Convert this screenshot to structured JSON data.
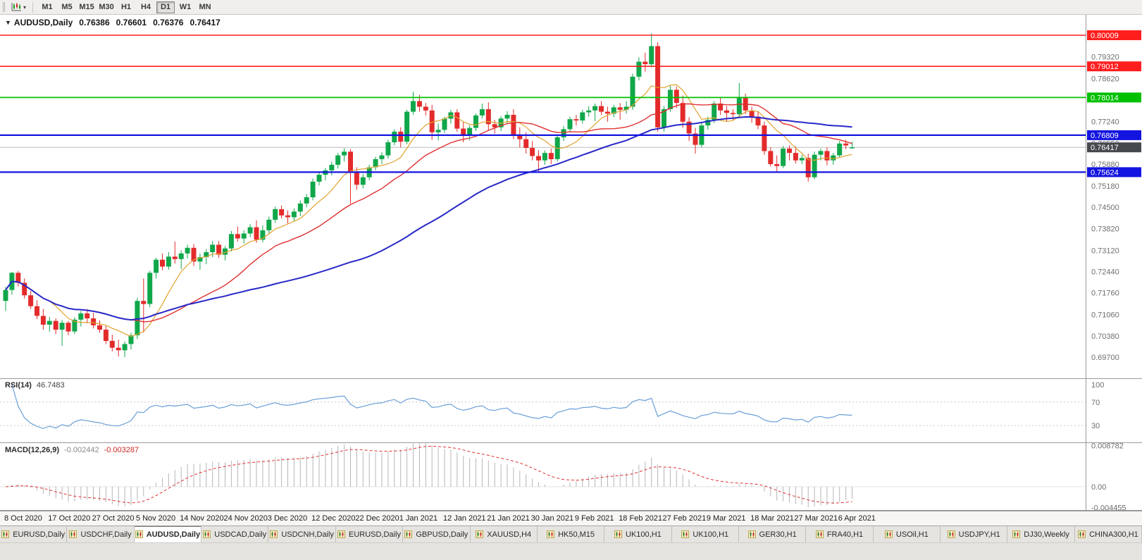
{
  "toolbar": {
    "chart_icon": {
      "name": "candlestick-chart-icon"
    },
    "dropdown_glyph": "▾",
    "timeframes": [
      "M1",
      "M5",
      "M15",
      "M30",
      "H1",
      "H4",
      "D1",
      "W1",
      "MN"
    ],
    "active_timeframe": "D1"
  },
  "chart": {
    "collapse_glyph": "▼",
    "symbol_label": "AUDUSD,Daily",
    "ohlc": {
      "open": "0.76386",
      "high": "0.76601",
      "low": "0.76376",
      "close": "0.76417"
    }
  },
  "chart_data": {
    "type": "candlestick",
    "title": "AUDUSD,Daily",
    "x_labels": [
      "8 Oct 2020",
      "17 Oct 2020",
      "27 Oct 2020",
      "5 Nov 2020",
      "14 Nov 2020",
      "24 Nov 2020",
      "3 Dec 2020",
      "12 Dec 2020",
      "22 Dec 2020",
      "1 Jan 2021",
      "12 Jan 2021",
      "21 Jan 2021",
      "30 Jan 2021",
      "9 Feb 2021",
      "18 Feb 2021",
      "27 Feb 2021",
      "9 Mar 2021",
      "18 Mar 2021",
      "27 Mar 2021",
      "6 Apr 2021"
    ],
    "ylim": [
      0.6901,
      0.8064
    ],
    "y_axis_ticks": [
      "0.79320",
      "0.78620",
      "0.77940",
      "0.77240",
      "0.76550",
      "0.75880",
      "0.75180",
      "0.74500",
      "0.73820",
      "0.73120",
      "0.72440",
      "0.71760",
      "0.71060",
      "0.70380",
      "0.69700"
    ],
    "colors": {
      "up": "#10a74a",
      "down": "#e32b2b"
    },
    "candles": [
      [
        0.715,
        0.7195,
        0.7118,
        0.7185
      ],
      [
        0.7185,
        0.7243,
        0.717,
        0.724
      ],
      [
        0.724,
        0.7246,
        0.7196,
        0.7208
      ],
      [
        0.7208,
        0.7222,
        0.7158,
        0.7168
      ],
      [
        0.7168,
        0.7182,
        0.7124,
        0.7133
      ],
      [
        0.7133,
        0.7152,
        0.7092,
        0.7102
      ],
      [
        0.7102,
        0.7124,
        0.7058,
        0.7074
      ],
      [
        0.7074,
        0.7099,
        0.7052,
        0.7086
      ],
      [
        0.7086,
        0.7094,
        0.7044,
        0.7058
      ],
      [
        0.7058,
        0.7089,
        0.7006,
        0.708
      ],
      [
        0.708,
        0.7086,
        0.704,
        0.7052
      ],
      [
        0.7052,
        0.7098,
        0.7044,
        0.709
      ],
      [
        0.709,
        0.7118,
        0.7068,
        0.711
      ],
      [
        0.711,
        0.7124,
        0.7078,
        0.7094
      ],
      [
        0.7094,
        0.7112,
        0.7062,
        0.7072
      ],
      [
        0.7072,
        0.7088,
        0.7048,
        0.7058
      ],
      [
        0.7058,
        0.707,
        0.7012,
        0.7022
      ],
      [
        0.7022,
        0.7042,
        0.6988,
        0.7
      ],
      [
        0.7,
        0.7026,
        0.6972,
        0.6992
      ],
      [
        0.6992,
        0.702,
        0.697,
        0.7012
      ],
      [
        0.7012,
        0.7048,
        0.6994,
        0.704
      ],
      [
        0.704,
        0.716,
        0.7028,
        0.715
      ],
      [
        0.715,
        0.7222,
        0.7049,
        0.714
      ],
      [
        0.714,
        0.7246,
        0.713,
        0.724
      ],
      [
        0.724,
        0.7288,
        0.7222,
        0.7282
      ],
      [
        0.7282,
        0.7302,
        0.7248,
        0.726
      ],
      [
        0.726,
        0.7306,
        0.725,
        0.7292
      ],
      [
        0.7292,
        0.734,
        0.727,
        0.7284
      ],
      [
        0.7284,
        0.7312,
        0.7252,
        0.7302
      ],
      [
        0.7302,
        0.733,
        0.7286,
        0.732
      ],
      [
        0.732,
        0.7332,
        0.7262,
        0.7276
      ],
      [
        0.7276,
        0.7302,
        0.725,
        0.729
      ],
      [
        0.729,
        0.7316,
        0.7268,
        0.7306
      ],
      [
        0.7306,
        0.7342,
        0.729,
        0.733
      ],
      [
        0.733,
        0.7342,
        0.7288,
        0.7298
      ],
      [
        0.7298,
        0.7326,
        0.728,
        0.7318
      ],
      [
        0.7318,
        0.7374,
        0.7308,
        0.7364
      ],
      [
        0.7364,
        0.7388,
        0.734,
        0.735
      ],
      [
        0.735,
        0.7376,
        0.7334,
        0.7366
      ],
      [
        0.7366,
        0.7396,
        0.7354,
        0.7386
      ],
      [
        0.7386,
        0.7408,
        0.7336,
        0.7346
      ],
      [
        0.7346,
        0.7392,
        0.7338,
        0.7376
      ],
      [
        0.7376,
        0.742,
        0.7366,
        0.741
      ],
      [
        0.741,
        0.7452,
        0.74,
        0.7444
      ],
      [
        0.7444,
        0.7456,
        0.7414,
        0.7424
      ],
      [
        0.7424,
        0.744,
        0.7398,
        0.7418
      ],
      [
        0.7418,
        0.7446,
        0.7406,
        0.7436
      ],
      [
        0.7436,
        0.7472,
        0.7422,
        0.7462
      ],
      [
        0.7462,
        0.7492,
        0.745,
        0.7482
      ],
      [
        0.7482,
        0.7542,
        0.7472,
        0.7532
      ],
      [
        0.7532,
        0.7564,
        0.752,
        0.7554
      ],
      [
        0.7554,
        0.7576,
        0.7536,
        0.7568
      ],
      [
        0.7568,
        0.7596,
        0.7552,
        0.7586
      ],
      [
        0.7586,
        0.7624,
        0.7574,
        0.7616
      ],
      [
        0.7616,
        0.7639,
        0.7596,
        0.7628
      ],
      [
        0.7628,
        0.7636,
        0.7462,
        0.756
      ],
      [
        0.756,
        0.7578,
        0.7506,
        0.7522
      ],
      [
        0.7522,
        0.7556,
        0.751,
        0.7546
      ],
      [
        0.7546,
        0.7586,
        0.7536,
        0.7578
      ],
      [
        0.7578,
        0.7612,
        0.7568,
        0.7604
      ],
      [
        0.7604,
        0.7626,
        0.7588,
        0.7616
      ],
      [
        0.7616,
        0.7666,
        0.7606,
        0.7658
      ],
      [
        0.7658,
        0.77,
        0.7648,
        0.7692
      ],
      [
        0.7692,
        0.7706,
        0.7642,
        0.766
      ],
      [
        0.766,
        0.7762,
        0.7652,
        0.7756
      ],
      [
        0.7756,
        0.782,
        0.7746,
        0.779
      ],
      [
        0.779,
        0.781,
        0.7756,
        0.7772
      ],
      [
        0.7772,
        0.7784,
        0.7744,
        0.776
      ],
      [
        0.776,
        0.7778,
        0.7666,
        0.769
      ],
      [
        0.769,
        0.7718,
        0.7664,
        0.7698
      ],
      [
        0.7698,
        0.774,
        0.7688,
        0.7734
      ],
      [
        0.7734,
        0.7762,
        0.7718,
        0.7754
      ],
      [
        0.7754,
        0.7764,
        0.7692,
        0.7702
      ],
      [
        0.7702,
        0.7724,
        0.7658,
        0.768
      ],
      [
        0.768,
        0.7712,
        0.7664,
        0.7704
      ],
      [
        0.7704,
        0.775,
        0.7694,
        0.7744
      ],
      [
        0.7744,
        0.7782,
        0.7734,
        0.7764
      ],
      [
        0.7764,
        0.7786,
        0.7698,
        0.7716
      ],
      [
        0.7716,
        0.773,
        0.7686,
        0.7706
      ],
      [
        0.7706,
        0.7742,
        0.7694,
        0.7734
      ],
      [
        0.7734,
        0.7758,
        0.7716,
        0.7746
      ],
      [
        0.7746,
        0.7764,
        0.7668,
        0.7682
      ],
      [
        0.7682,
        0.7706,
        0.7642,
        0.7668
      ],
      [
        0.7668,
        0.769,
        0.7622,
        0.764
      ],
      [
        0.764,
        0.7662,
        0.76,
        0.7614
      ],
      [
        0.7614,
        0.7632,
        0.7564,
        0.76
      ],
      [
        0.76,
        0.7632,
        0.7586,
        0.7624
      ],
      [
        0.7624,
        0.7638,
        0.7588,
        0.7604
      ],
      [
        0.7604,
        0.768,
        0.7596,
        0.7674
      ],
      [
        0.7674,
        0.771,
        0.7662,
        0.77
      ],
      [
        0.77,
        0.774,
        0.769,
        0.7732
      ],
      [
        0.7732,
        0.7746,
        0.7712,
        0.7728
      ],
      [
        0.7728,
        0.7762,
        0.7718,
        0.7754
      ],
      [
        0.7754,
        0.7774,
        0.774,
        0.776
      ],
      [
        0.776,
        0.7782,
        0.7726,
        0.7774
      ],
      [
        0.7774,
        0.779,
        0.7746,
        0.7756
      ],
      [
        0.7756,
        0.7772,
        0.7724,
        0.775
      ],
      [
        0.775,
        0.7778,
        0.7738,
        0.777
      ],
      [
        0.777,
        0.7784,
        0.773,
        0.7762
      ],
      [
        0.7762,
        0.779,
        0.775,
        0.7772
      ],
      [
        0.7772,
        0.7878,
        0.7762,
        0.7868
      ],
      [
        0.7868,
        0.793,
        0.7856,
        0.7916
      ],
      [
        0.7916,
        0.7945,
        0.7884,
        0.7908
      ],
      [
        0.7908,
        0.8007,
        0.7898,
        0.7966
      ],
      [
        0.7966,
        0.7978,
        0.7692,
        0.7706
      ],
      [
        0.7706,
        0.7774,
        0.7692,
        0.7764
      ],
      [
        0.7764,
        0.784,
        0.7756,
        0.7826
      ],
      [
        0.7826,
        0.7836,
        0.7768,
        0.7784
      ],
      [
        0.7784,
        0.7808,
        0.7704,
        0.7724
      ],
      [
        0.7724,
        0.7738,
        0.7662,
        0.7686
      ],
      [
        0.7686,
        0.7704,
        0.7622,
        0.765
      ],
      [
        0.765,
        0.772,
        0.7642,
        0.7712
      ],
      [
        0.7712,
        0.774,
        0.7698,
        0.773
      ],
      [
        0.773,
        0.779,
        0.772,
        0.7782
      ],
      [
        0.7782,
        0.78,
        0.7746,
        0.776
      ],
      [
        0.776,
        0.7774,
        0.7724,
        0.7752
      ],
      [
        0.7752,
        0.7764,
        0.773,
        0.7748
      ],
      [
        0.7748,
        0.7848,
        0.774,
        0.78
      ],
      [
        0.78,
        0.7814,
        0.7748,
        0.776
      ],
      [
        0.776,
        0.7772,
        0.772,
        0.774
      ],
      [
        0.774,
        0.7758,
        0.77,
        0.7712
      ],
      [
        0.7712,
        0.7724,
        0.7618,
        0.763
      ],
      [
        0.763,
        0.7642,
        0.758,
        0.7588
      ],
      [
        0.7588,
        0.7616,
        0.7562,
        0.7582
      ],
      [
        0.7582,
        0.7646,
        0.7576,
        0.7638
      ],
      [
        0.7638,
        0.7648,
        0.76,
        0.7624
      ],
      [
        0.7624,
        0.7644,
        0.759,
        0.76
      ],
      [
        0.76,
        0.7618,
        0.7588,
        0.7608
      ],
      [
        0.7608,
        0.7622,
        0.7532,
        0.7546
      ],
      [
        0.7546,
        0.7628,
        0.754,
        0.7618
      ],
      [
        0.7618,
        0.7638,
        0.76,
        0.763
      ],
      [
        0.763,
        0.7642,
        0.7584,
        0.76
      ],
      [
        0.76,
        0.7624,
        0.7586,
        0.7616
      ],
      [
        0.7616,
        0.7662,
        0.7608,
        0.7654
      ],
      [
        0.7654,
        0.7666,
        0.7636,
        0.7648
      ],
      [
        0.76386,
        0.76601,
        0.76376,
        0.76417
      ]
    ],
    "h_lines": [
      {
        "value": 0.80009,
        "label": "0.80009",
        "color": "#ff1e1e",
        "width": 1.6
      },
      {
        "value": 0.79012,
        "label": "0.79012",
        "color": "#ff1e1e",
        "width": 1.6
      },
      {
        "value": 0.78014,
        "label": "0.78014",
        "color": "#00c000",
        "width": 1.8
      },
      {
        "value": 0.76809,
        "label": "0.76809",
        "color": "#1414e0",
        "width": 2.2
      },
      {
        "value": 0.75624,
        "label": "0.75624",
        "color": "#1414e0",
        "width": 2.2
      }
    ],
    "current_price": {
      "value": 0.76417,
      "label": "0.76417",
      "box_color": "#45484d"
    },
    "overlays": [
      {
        "name": "ma-fast",
        "period": 8,
        "color": "#e0a32e",
        "width": 1.2
      },
      {
        "name": "ma-mid",
        "period": 21,
        "color": "#e03030",
        "width": 1.4
      },
      {
        "name": "ma-slow",
        "period": 55,
        "color": "#2828c8",
        "width": 2
      }
    ],
    "indicators": {
      "rsi": {
        "label": "RSI(14)",
        "value": "46.7483",
        "period": 14,
        "levels": [
          70,
          30
        ],
        "axis_labels": [
          "100",
          "70",
          "30"
        ],
        "color": "#6a9fd8"
      },
      "macd": {
        "label": "MACD(12,26,9)",
        "values": [
          "-0.002442",
          "-0.003287"
        ],
        "axis_labels": [
          "0.008782",
          "0.00",
          "-0.004455"
        ],
        "hist_color": "#b6b6b6",
        "signal_color": "#e03030"
      }
    }
  },
  "tabs": {
    "active_index": 2,
    "items": [
      "EURUSD,Daily",
      "USDCHF,Daily",
      "AUDUSD,Daily",
      "USDCAD,Daily",
      "USDCNH,Daily",
      "EURUSD,Daily",
      "GBPUSD,Daily",
      "XAUUSD,H4",
      "HK50,M15",
      "UK100,H1",
      "UK100,H1",
      "GER30,H1",
      "FRA40,H1",
      "USOil,H1",
      "USDJPY,H1",
      "DJ30,Weekly",
      "CHINA300,H1"
    ]
  }
}
